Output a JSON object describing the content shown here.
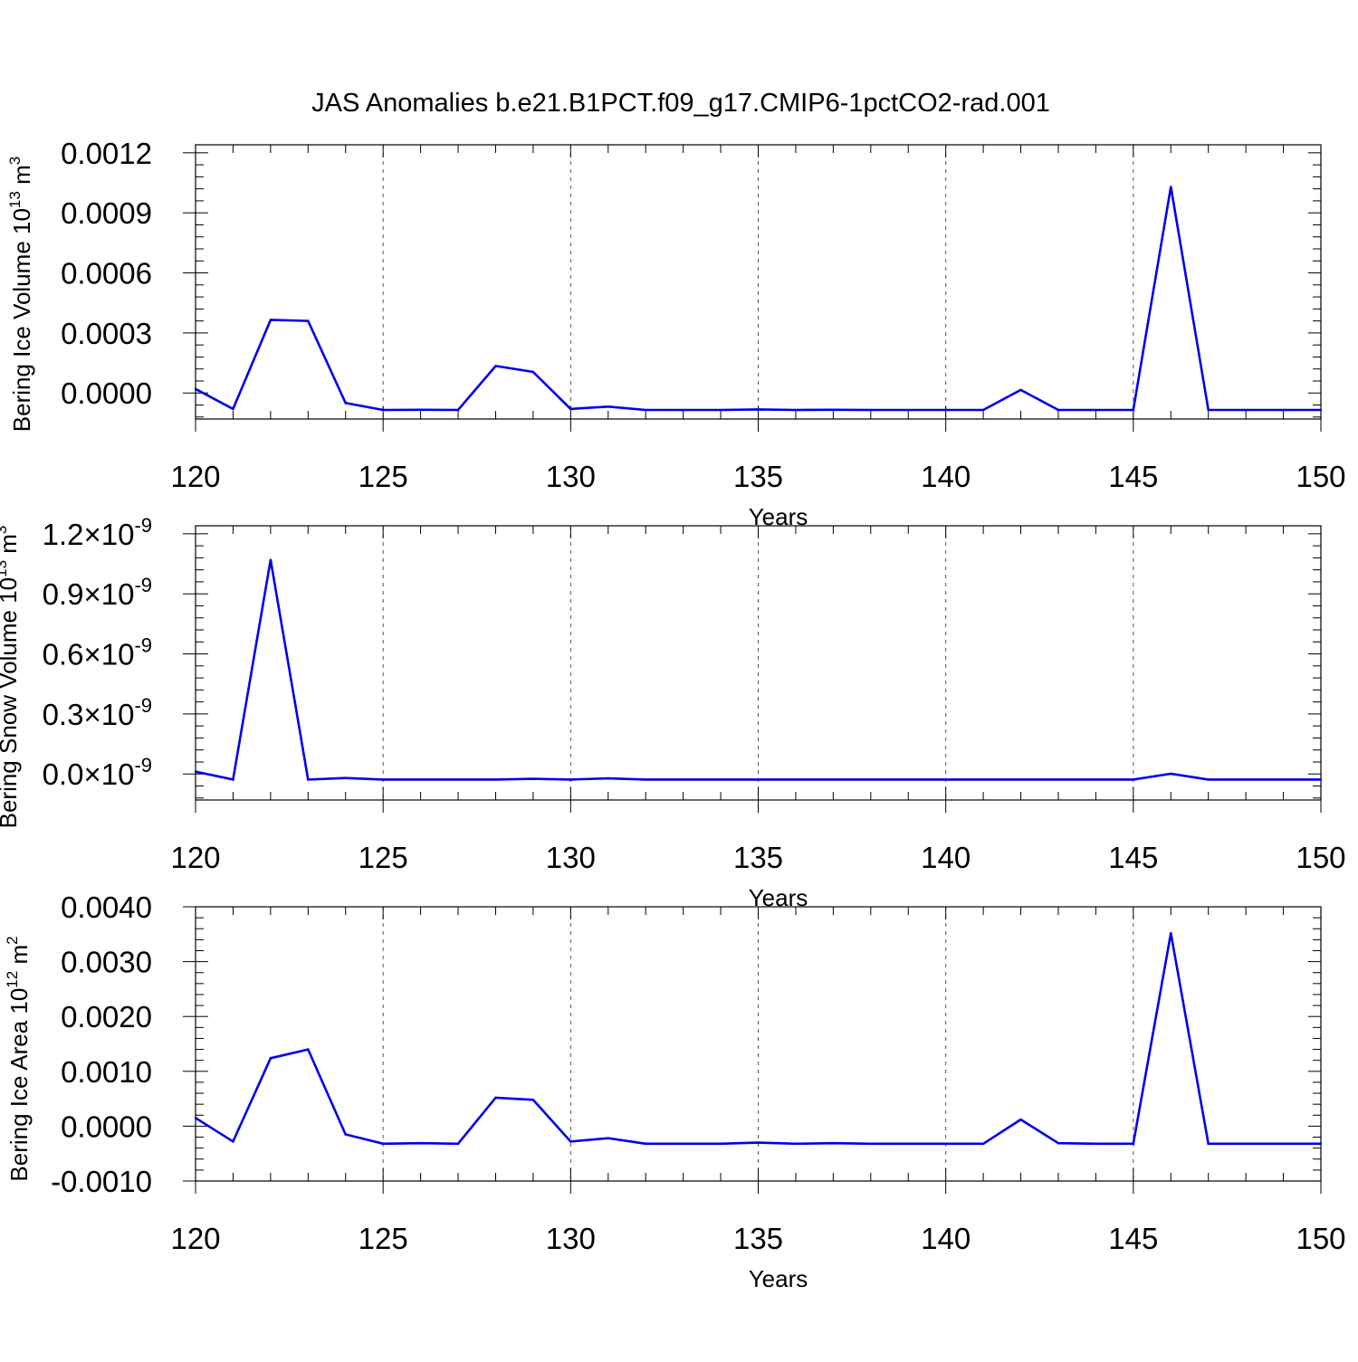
{
  "figure": {
    "title": "JAS Anomalies b.e21.B1PCT.f09_g17.CMIP6-1pctCO2-rad.001"
  },
  "colors": {
    "series_line": "#0000ee",
    "axis": "#000000",
    "grid": "#555555"
  },
  "chart_data": [
    {
      "type": "line",
      "xlabel": "Years",
      "ylabel_parts": [
        "Bering Ice Volume 10",
        "13",
        " m",
        "3"
      ],
      "xlim": [
        120,
        150
      ],
      "ylim": [
        -0.00013,
        0.00124
      ],
      "xticks": [
        "120",
        "125",
        "130",
        "135",
        "140",
        "145",
        "150"
      ],
      "yticks": [
        {
          "value": 0.0,
          "label": "0.0000"
        },
        {
          "value": 0.0003,
          "label": "0.0003"
        },
        {
          "value": 0.0006,
          "label": "0.0006"
        },
        {
          "value": 0.0009,
          "label": "0.0009"
        },
        {
          "value": 0.0012,
          "label": "0.0012"
        }
      ],
      "grid": "vertical dashed at major x ticks",
      "x": [
        120,
        121,
        122,
        123,
        124,
        125,
        126,
        127,
        128,
        129,
        130,
        131,
        132,
        133,
        134,
        135,
        136,
        137,
        138,
        139,
        140,
        141,
        142,
        143,
        144,
        145,
        146,
        147,
        148,
        149,
        150
      ],
      "values": [
        2e-05,
        -8e-05,
        0.000365,
        0.00036,
        -5e-05,
        -8.5e-05,
        -8.4e-05,
        -8.5e-05,
        0.000135,
        0.000105,
        -8e-05,
        -6.8e-05,
        -8.5e-05,
        -8.5e-05,
        -8.5e-05,
        -8.2e-05,
        -8.5e-05,
        -8.4e-05,
        -8.5e-05,
        -8.5e-05,
        -8.5e-05,
        -8.5e-05,
        1.5e-05,
        -8.5e-05,
        -8.5e-05,
        -8.5e-05,
        0.00103,
        -8.5e-05,
        -8.5e-05,
        -8.5e-05,
        -8.5e-05
      ]
    },
    {
      "type": "line",
      "xlabel": "Years",
      "ylabel_parts": [
        "Bering Snow Volume 10",
        "13",
        " m",
        "3"
      ],
      "xlim": [
        120,
        150
      ],
      "ylim": [
        -1.3e-10,
        1.24e-09
      ],
      "xticks": [
        "120",
        "125",
        "130",
        "135",
        "140",
        "145",
        "150"
      ],
      "yticks": [
        {
          "value": 0.0,
          "mantissa": "0.0",
          "times": "×",
          "power": "10",
          "exponent": "-9"
        },
        {
          "value": 3e-10,
          "mantissa": "0.3",
          "times": "×",
          "power": "10",
          "exponent": "-9"
        },
        {
          "value": 6e-10,
          "mantissa": "0.6",
          "times": "×",
          "power": "10",
          "exponent": "-9"
        },
        {
          "value": 9e-10,
          "mantissa": "0.9",
          "times": "×",
          "power": "10",
          "exponent": "-9"
        },
        {
          "value": 1.2e-09,
          "mantissa": "1.2",
          "times": "×",
          "power": "10",
          "exponent": "-9"
        }
      ],
      "grid": "vertical dashed at major x ticks",
      "x": [
        120,
        121,
        122,
        123,
        124,
        125,
        126,
        127,
        128,
        129,
        130,
        131,
        132,
        133,
        134,
        135,
        136,
        137,
        138,
        139,
        140,
        141,
        142,
        143,
        144,
        145,
        146,
        147,
        148,
        149,
        150
      ],
      "values": [
        1.2e-11,
        -2.8e-11,
        1.07e-09,
        -2.8e-11,
        -2e-11,
        -2.8e-11,
        -2.8e-11,
        -2.8e-11,
        -2.8e-11,
        -2.4e-11,
        -2.8e-11,
        -2.2e-11,
        -2.8e-11,
        -2.8e-11,
        -2.8e-11,
        -2.8e-11,
        -2.8e-11,
        -2.8e-11,
        -2.8e-11,
        -2.8e-11,
        -2.8e-11,
        -2.8e-11,
        -2.8e-11,
        -2.8e-11,
        -2.8e-11,
        -2.8e-11,
        1e-12,
        -2.8e-11,
        -2.8e-11,
        -2.8e-11,
        -2.8e-11
      ]
    },
    {
      "type": "line",
      "xlabel": "Years",
      "ylabel_parts": [
        "Bering Ice Area 10",
        "12",
        " m",
        "2"
      ],
      "xlim": [
        120,
        150
      ],
      "ylim": [
        -0.001,
        0.004
      ],
      "xticks": [
        "120",
        "125",
        "130",
        "135",
        "140",
        "145",
        "150"
      ],
      "yticks": [
        {
          "value": -0.001,
          "label": "-0.0010"
        },
        {
          "value": 0.0,
          "label": "0.0000"
        },
        {
          "value": 0.001,
          "label": "0.0010"
        },
        {
          "value": 0.002,
          "label": "0.0020"
        },
        {
          "value": 0.003,
          "label": "0.0030"
        },
        {
          "value": 0.004,
          "label": "0.0040"
        }
      ],
      "grid": "vertical dashed at major x ticks",
      "x": [
        120,
        121,
        122,
        123,
        124,
        125,
        126,
        127,
        128,
        129,
        130,
        131,
        132,
        133,
        134,
        135,
        136,
        137,
        138,
        139,
        140,
        141,
        142,
        143,
        144,
        145,
        146,
        147,
        148,
        149,
        150
      ],
      "values": [
        0.00015,
        -0.00028,
        0.00124,
        0.0014,
        -0.00015,
        -0.00032,
        -0.00031,
        -0.00032,
        0.00052,
        0.00048,
        -0.00028,
        -0.00022,
        -0.00032,
        -0.00032,
        -0.00032,
        -0.0003,
        -0.00032,
        -0.00031,
        -0.00032,
        -0.00032,
        -0.00032,
        -0.00032,
        0.00012,
        -0.00031,
        -0.00032,
        -0.00032,
        0.00352,
        -0.00032,
        -0.00032,
        -0.00032,
        -0.00032
      ]
    }
  ]
}
